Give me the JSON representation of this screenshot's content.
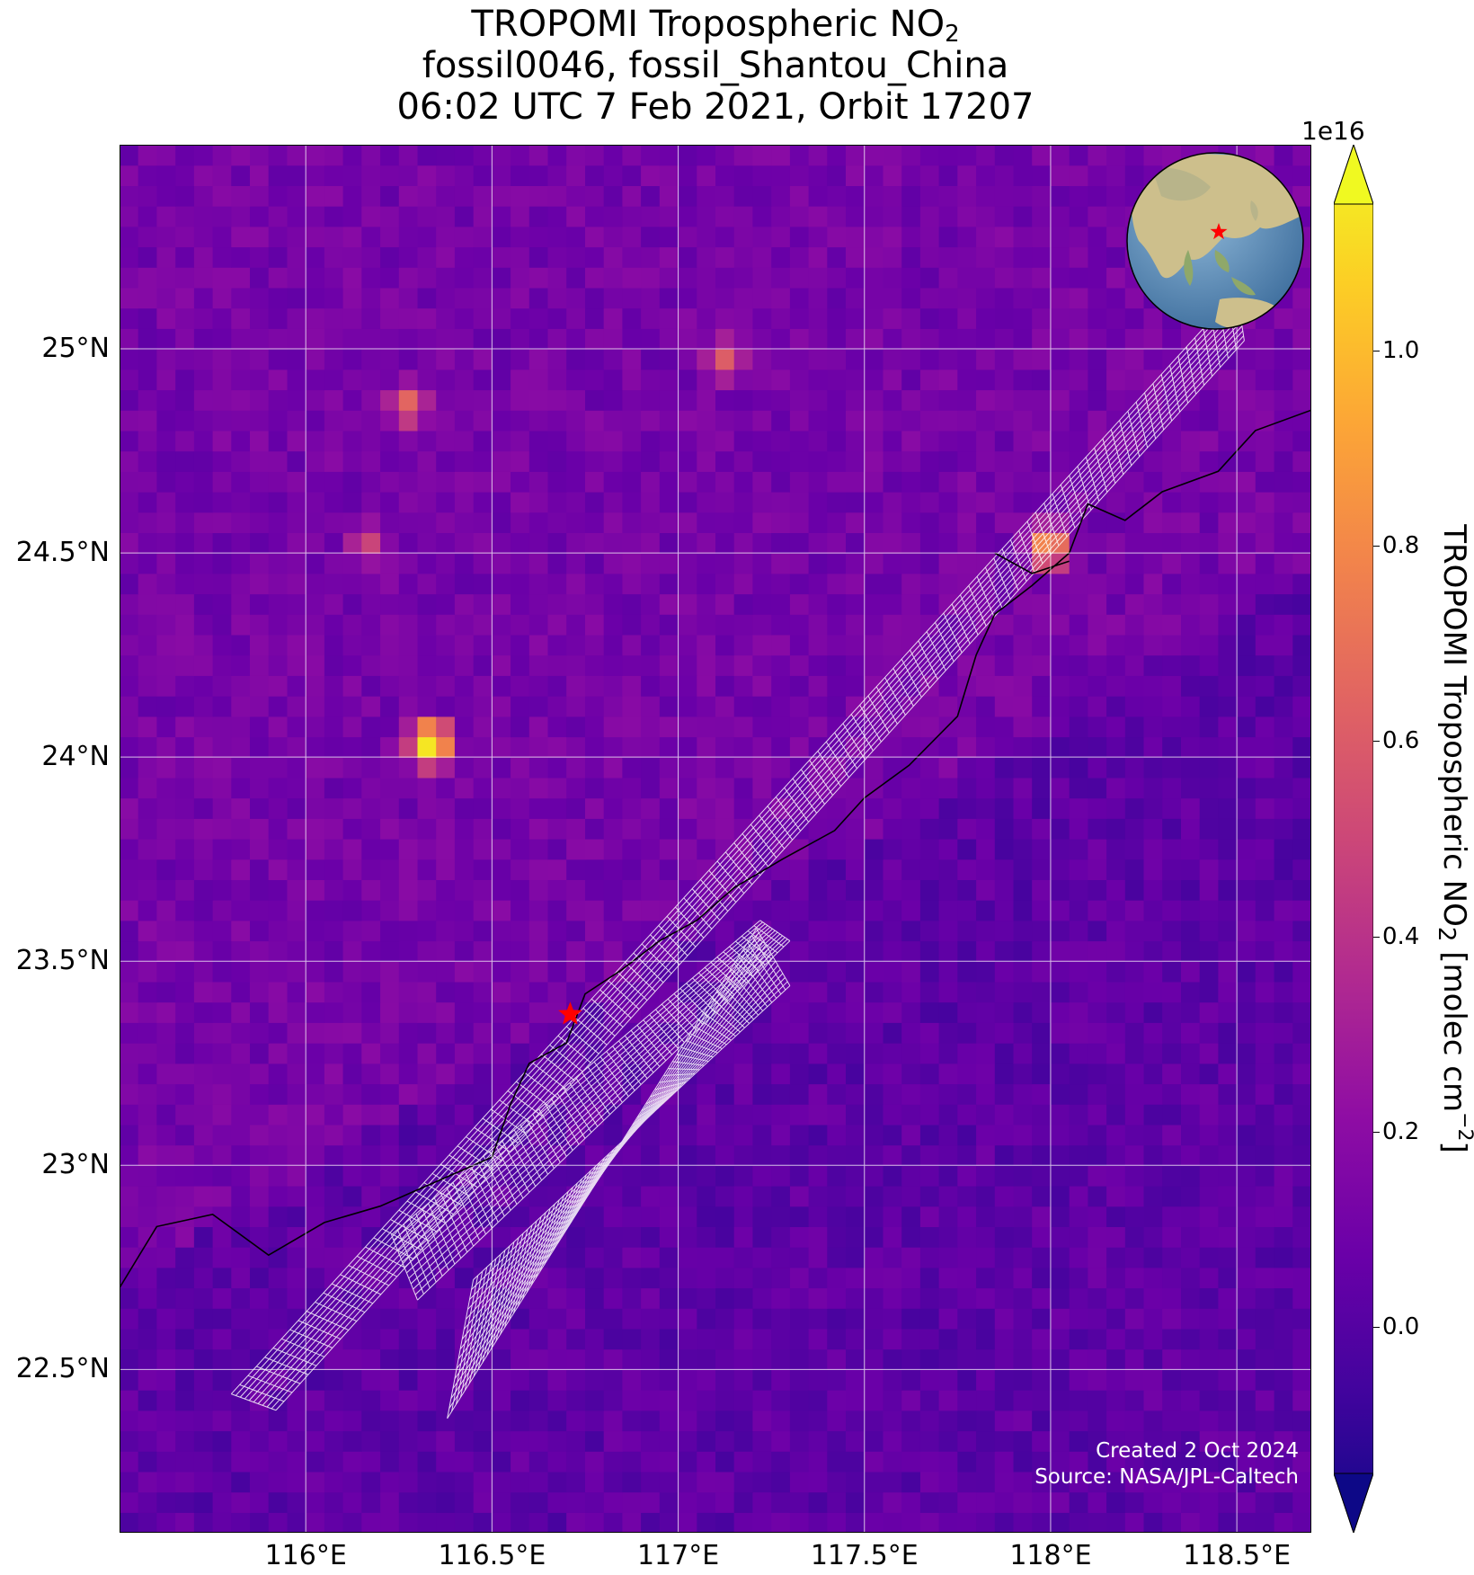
{
  "title": {
    "line1_prefix": "TROPOMI Tropospheric NO",
    "line1_sub": "2",
    "line2": "fossil0046, fossil_Shantou_China",
    "line3": "06:02 UTC 7 Feb 2021, Orbit 17207"
  },
  "map": {
    "lon_range": [
      115.5,
      118.7
    ],
    "lat_range": [
      22.1,
      25.5
    ],
    "lat_ticks": [
      {
        "value": 25.0,
        "label": "25°N"
      },
      {
        "value": 24.5,
        "label": "24.5°N"
      },
      {
        "value": 24.0,
        "label": "24°N"
      },
      {
        "value": 23.5,
        "label": "23.5°N"
      },
      {
        "value": 23.0,
        "label": "23°N"
      },
      {
        "value": 22.5,
        "label": "22.5°N"
      }
    ],
    "lon_ticks": [
      {
        "value": 116.0,
        "label": "116°E"
      },
      {
        "value": 116.5,
        "label": "116.5°E"
      },
      {
        "value": 117.0,
        "label": "117°E"
      },
      {
        "value": 117.5,
        "label": "117.5°E"
      },
      {
        "value": 118.0,
        "label": "118°E"
      },
      {
        "value": 118.5,
        "label": "118.5°E"
      }
    ],
    "site_marker": {
      "name": "fossil_Shantou_China",
      "lon": 116.71,
      "lat": 23.37,
      "color": "#ff0000"
    },
    "hotspots": [
      {
        "lon": 116.31,
        "lat": 24.01,
        "value": 1.15
      },
      {
        "lon": 117.97,
        "lat": 24.49,
        "value": 0.85
      },
      {
        "lon": 116.25,
        "lat": 24.84,
        "value": 0.65
      },
      {
        "lon": 117.1,
        "lat": 24.95,
        "value": 0.6
      },
      {
        "lon": 116.14,
        "lat": 24.5,
        "value": 0.5
      }
    ],
    "grid_color": "#ffffff"
  },
  "colorbar": {
    "colormap": "plasma",
    "range": [
      -0.15,
      1.15
    ],
    "exponent_label": "1e16",
    "ticks": [
      {
        "value": 0.0,
        "label": "0.0"
      },
      {
        "value": 0.2,
        "label": "0.2"
      },
      {
        "value": 0.4,
        "label": "0.4"
      },
      {
        "value": 0.6,
        "label": "0.6"
      },
      {
        "value": 0.8,
        "label": "0.8"
      },
      {
        "value": 1.0,
        "label": "1.0"
      }
    ],
    "label_prefix": "TROPOMI Tropospheric NO",
    "label_sub": "2",
    "label_units_prefix": " [molec cm",
    "label_units_sup": "−2",
    "label_units_suffix": "]"
  },
  "credit": {
    "line1": "Created 2 Oct 2024",
    "line2": "Source: NASA/JPL-Caltech"
  },
  "inset_globe": {
    "marker_color": "#ff0000"
  }
}
